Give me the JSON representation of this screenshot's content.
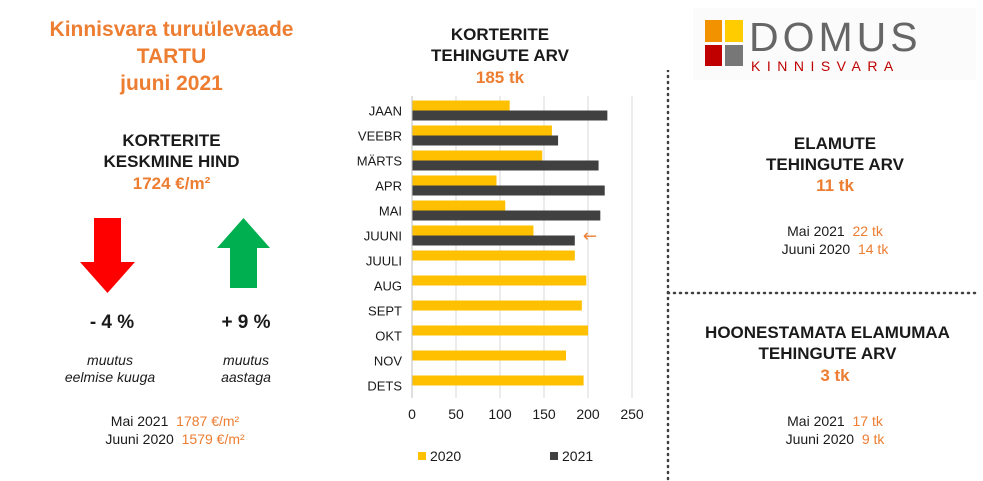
{
  "header": {
    "title_lines": [
      "Kinnisvara turuülevaade",
      "TARTU",
      "juuni 2021"
    ]
  },
  "apartment_price": {
    "heading_lines": [
      "KORTERITE",
      "KESKMINE HIND"
    ],
    "value": "1724 €/m²",
    "month_change": {
      "value": "- 4 %",
      "label_lines": [
        "muutus",
        "eelmise kuuga"
      ],
      "direction": "down",
      "color": "#ff0000"
    },
    "year_change": {
      "value": "+ 9 %",
      "label_lines": [
        "muutus",
        "aastaga"
      ],
      "direction": "up",
      "color": "#00b050"
    },
    "comparisons": [
      {
        "label": "Mai 2021",
        "value": "1787 €/m²"
      },
      {
        "label": "Juuni 2020",
        "value": "1579 €/m²"
      }
    ]
  },
  "logo": {
    "name": "DOMUS",
    "subtitle": "KINNISVARA",
    "colors": [
      "#f39200",
      "#ffcc00",
      "#c00000",
      "#777777"
    ]
  },
  "houses": {
    "title_lines": [
      "ELAMUTE",
      "TEHINGUTE ARV"
    ],
    "value": "11 tk",
    "comparisons": [
      {
        "label": "Mai 2021",
        "value": "22 tk"
      },
      {
        "label": "Juuni 2020",
        "value": "14 tk"
      }
    ]
  },
  "land": {
    "title_lines": [
      "HOONESTAMATA ELAMUMAA",
      "TEHINGUTE ARV"
    ],
    "value": "3 tk",
    "comparisons": [
      {
        "label": "Mai 2021",
        "value": "17 tk"
      },
      {
        "label": "Juuni 2020",
        "value": "9 tk"
      }
    ]
  },
  "chart_data": {
    "type": "bar",
    "orientation": "horizontal",
    "title_lines": [
      "KORTERITE",
      "TEHINGUTE ARV"
    ],
    "subtitle": "185 tk",
    "categories": [
      "JAAN",
      "VEEBR",
      "MÄRTS",
      "APR",
      "MAI",
      "JUUNI",
      "JUULI",
      "AUG",
      "SEPT",
      "OKT",
      "NOV",
      "DETS"
    ],
    "series": [
      {
        "name": "2020",
        "color": "#ffc000",
        "values": [
          111,
          159,
          148,
          96,
          106,
          138,
          185,
          198,
          193,
          200,
          175,
          195
        ]
      },
      {
        "name": "2021",
        "color": "#404040",
        "values": [
          222,
          166,
          212,
          219,
          214,
          185,
          null,
          null,
          null,
          null,
          null,
          null
        ]
      }
    ],
    "xlim": [
      0,
      250
    ],
    "xticks": [
      0,
      50,
      100,
      150,
      200,
      250
    ],
    "grid": true,
    "legend": "bottom",
    "annotation": "←"
  }
}
